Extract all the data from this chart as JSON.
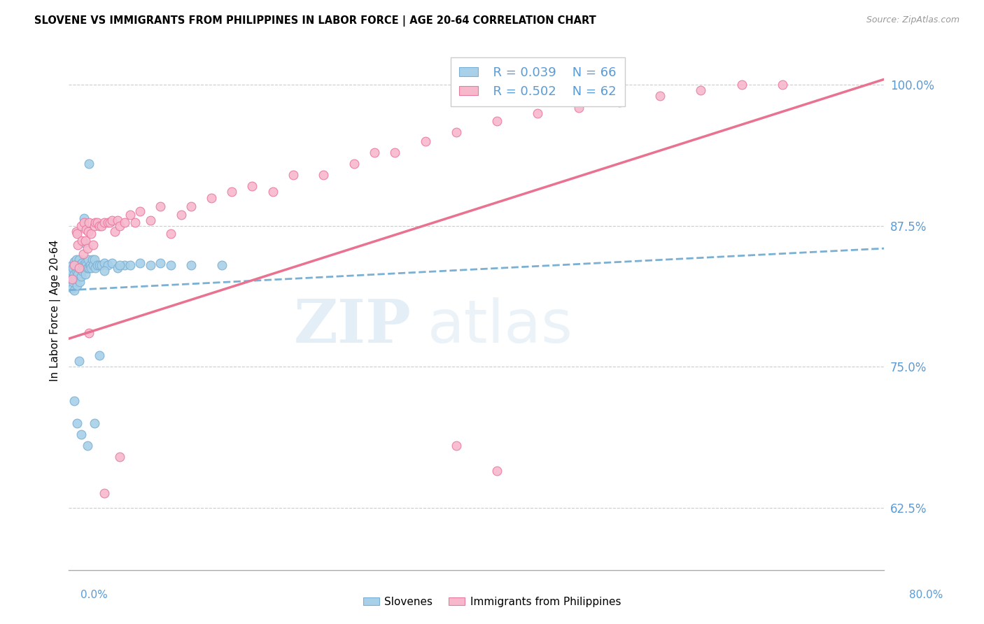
{
  "title": "SLOVENE VS IMMIGRANTS FROM PHILIPPINES IN LABOR FORCE | AGE 20-64 CORRELATION CHART",
  "source": "Source: ZipAtlas.com",
  "ylabel": "In Labor Force | Age 20-64",
  "right_yticks": [
    "62.5%",
    "75.0%",
    "87.5%",
    "100.0%"
  ],
  "right_ytick_vals": [
    0.625,
    0.75,
    0.875,
    1.0
  ],
  "xmin": 0.0,
  "xmax": 0.8,
  "ymin": 0.57,
  "ymax": 1.03,
  "blue_R": "R = 0.039",
  "blue_N": "N = 66",
  "pink_R": "R = 0.502",
  "pink_N": "N = 62",
  "blue_color": "#A8D0E8",
  "pink_color": "#F7B8CC",
  "blue_edge_color": "#7AB0D4",
  "pink_edge_color": "#E87A9F",
  "blue_line_color": "#7AB0D4",
  "pink_line_color": "#E8728F",
  "legend_label_blue": "Slovenes",
  "legend_label_pink": "Immigrants from Philippines",
  "watermark_zip": "ZIP",
  "watermark_atlas": "atlas",
  "blue_trend_x0": 0.0,
  "blue_trend_y0": 0.818,
  "blue_trend_x1": 0.8,
  "blue_trend_y1": 0.855,
  "pink_trend_x0": 0.0,
  "pink_trend_y0": 0.775,
  "pink_trend_x1": 0.8,
  "pink_trend_y1": 1.005,
  "blue_scatter_x": [
    0.001,
    0.002,
    0.003,
    0.003,
    0.004,
    0.004,
    0.005,
    0.005,
    0.005,
    0.006,
    0.006,
    0.007,
    0.007,
    0.008,
    0.008,
    0.009,
    0.009,
    0.01,
    0.01,
    0.011,
    0.011,
    0.012,
    0.012,
    0.013,
    0.013,
    0.014,
    0.015,
    0.015,
    0.016,
    0.016,
    0.017,
    0.018,
    0.019,
    0.02,
    0.021,
    0.022,
    0.023,
    0.024,
    0.025,
    0.026,
    0.028,
    0.03,
    0.032,
    0.035,
    0.038,
    0.042,
    0.048,
    0.055,
    0.06,
    0.07,
    0.08,
    0.09,
    0.1,
    0.12,
    0.15,
    0.005,
    0.008,
    0.012,
    0.018,
    0.025,
    0.03,
    0.02,
    0.015,
    0.01,
    0.035,
    0.05
  ],
  "blue_scatter_y": [
    0.83,
    0.835,
    0.84,
    0.82,
    0.838,
    0.825,
    0.843,
    0.832,
    0.818,
    0.84,
    0.828,
    0.835,
    0.845,
    0.838,
    0.822,
    0.84,
    0.832,
    0.838,
    0.845,
    0.84,
    0.825,
    0.838,
    0.83,
    0.842,
    0.835,
    0.84,
    0.86,
    0.838,
    0.842,
    0.832,
    0.84,
    0.838,
    0.845,
    0.838,
    0.84,
    0.838,
    0.845,
    0.84,
    0.845,
    0.838,
    0.84,
    0.84,
    0.84,
    0.842,
    0.84,
    0.842,
    0.838,
    0.84,
    0.84,
    0.842,
    0.84,
    0.842,
    0.84,
    0.84,
    0.84,
    0.72,
    0.7,
    0.69,
    0.68,
    0.7,
    0.76,
    0.93,
    0.882,
    0.755,
    0.835,
    0.84
  ],
  "pink_scatter_x": [
    0.003,
    0.005,
    0.007,
    0.008,
    0.009,
    0.01,
    0.012,
    0.013,
    0.014,
    0.015,
    0.016,
    0.017,
    0.018,
    0.019,
    0.02,
    0.022,
    0.024,
    0.025,
    0.026,
    0.028,
    0.03,
    0.032,
    0.035,
    0.038,
    0.04,
    0.042,
    0.045,
    0.048,
    0.05,
    0.055,
    0.06,
    0.065,
    0.07,
    0.08,
    0.09,
    0.1,
    0.11,
    0.12,
    0.14,
    0.16,
    0.18,
    0.2,
    0.22,
    0.25,
    0.28,
    0.3,
    0.32,
    0.35,
    0.38,
    0.42,
    0.46,
    0.5,
    0.54,
    0.58,
    0.62,
    0.66,
    0.7,
    0.02,
    0.035,
    0.38,
    0.42,
    0.05
  ],
  "pink_scatter_y": [
    0.828,
    0.84,
    0.87,
    0.868,
    0.858,
    0.838,
    0.875,
    0.862,
    0.85,
    0.878,
    0.862,
    0.872,
    0.855,
    0.87,
    0.878,
    0.868,
    0.858,
    0.875,
    0.878,
    0.878,
    0.875,
    0.875,
    0.878,
    0.878,
    0.878,
    0.88,
    0.87,
    0.88,
    0.875,
    0.878,
    0.885,
    0.878,
    0.888,
    0.88,
    0.892,
    0.868,
    0.885,
    0.892,
    0.9,
    0.905,
    0.91,
    0.905,
    0.92,
    0.92,
    0.93,
    0.94,
    0.94,
    0.95,
    0.958,
    0.968,
    0.975,
    0.98,
    0.985,
    0.99,
    0.995,
    1.0,
    1.0,
    0.78,
    0.638,
    0.68,
    0.658,
    0.67
  ]
}
